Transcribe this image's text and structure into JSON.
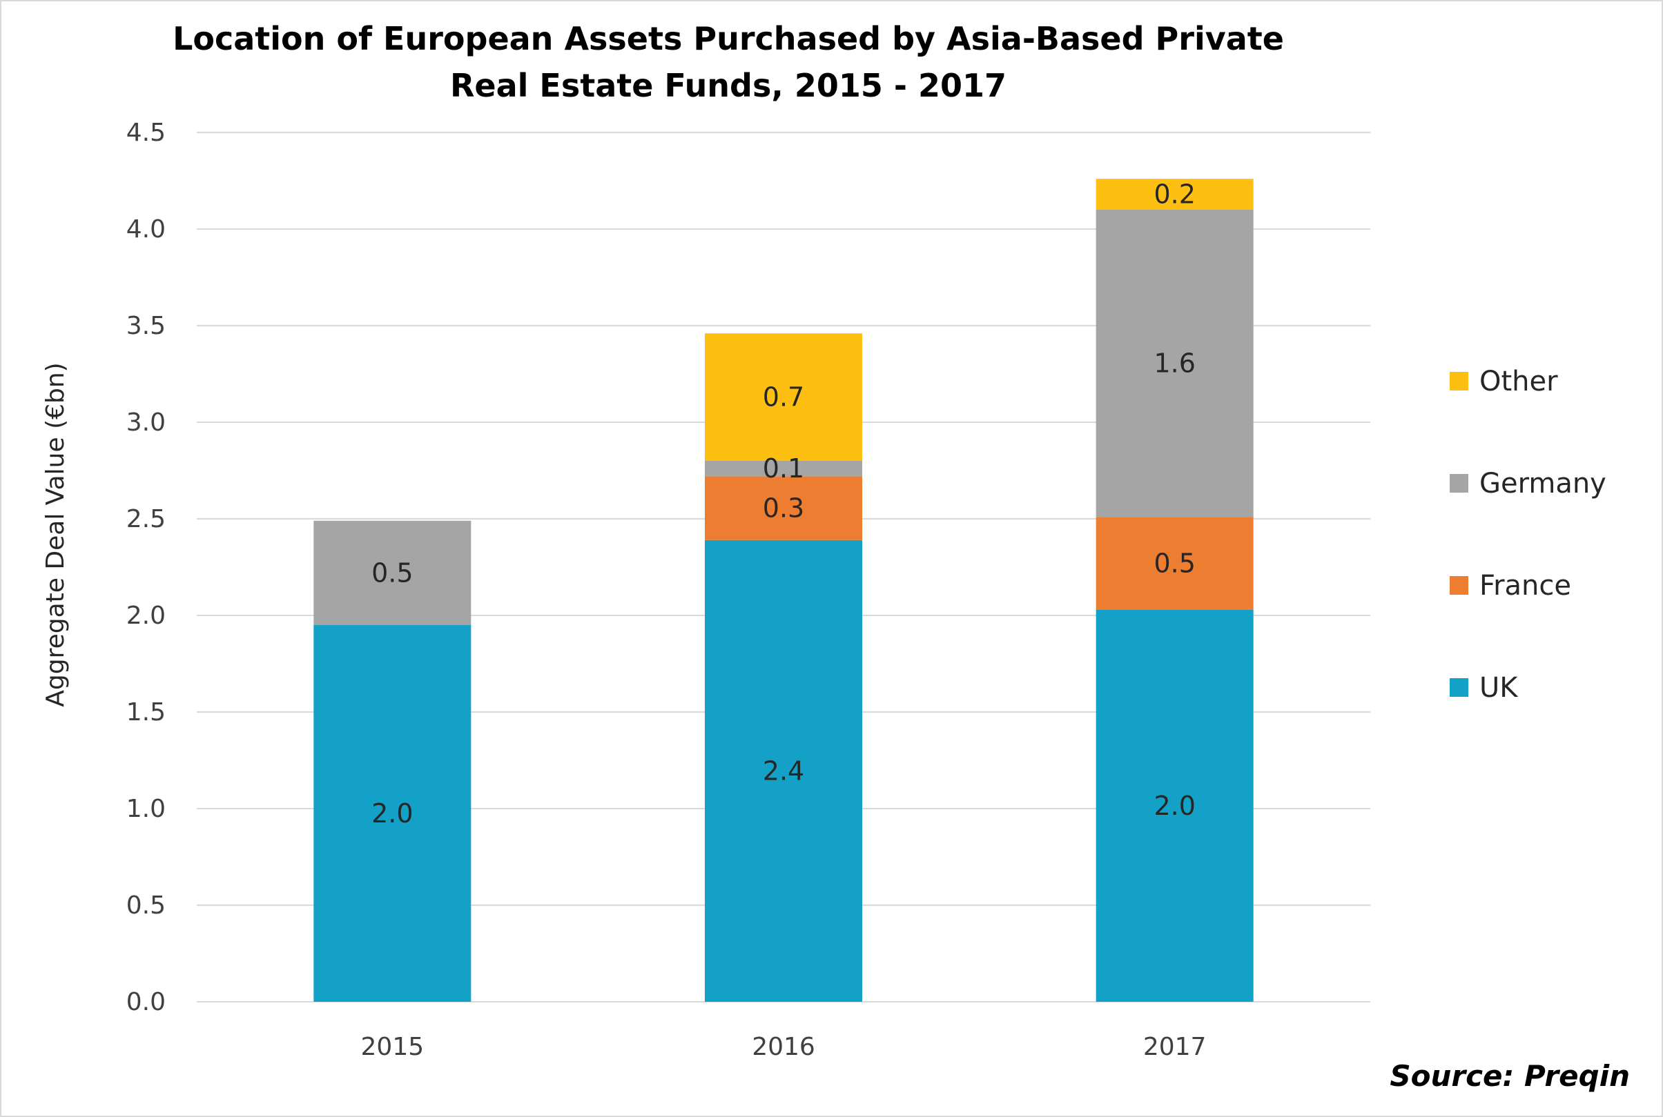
{
  "chart_data": {
    "type": "bar",
    "stacked": true,
    "title": "Location of European Assets Purchased by Asia-Based Private Real Estate Funds, 2015 - 2017",
    "ylabel": "Aggregate Deal Value  (€bn)",
    "xlabel": "",
    "ylim": [
      0,
      4.5
    ],
    "yticks": [
      "0.0",
      "0.5",
      "1.0",
      "1.5",
      "2.0",
      "2.5",
      "3.0",
      "3.5",
      "4.0",
      "4.5"
    ],
    "grid": true,
    "legend_position": "right",
    "categories": [
      "2015",
      "2016",
      "2017"
    ],
    "series": [
      {
        "name": "UK",
        "color": "#14a1c7",
        "values": [
          1.95,
          2.39,
          2.03
        ],
        "labels": [
          "2.0",
          "2.4",
          "2.0"
        ]
      },
      {
        "name": "France",
        "color": "#ed7d31",
        "values": [
          0,
          0.33,
          0.48
        ],
        "labels": [
          "",
          "0.3",
          "0.5"
        ]
      },
      {
        "name": "Germany",
        "color": "#a5a5a5",
        "values": [
          0.54,
          0.08,
          1.59
        ],
        "labels": [
          "0.5",
          "0.1",
          "1.6"
        ]
      },
      {
        "name": "Other",
        "color": "#fdbf12",
        "values": [
          0,
          0.66,
          0.16
        ],
        "labels": [
          "",
          "0.7",
          "0.2"
        ]
      }
    ]
  },
  "source": "Source: Preqin"
}
